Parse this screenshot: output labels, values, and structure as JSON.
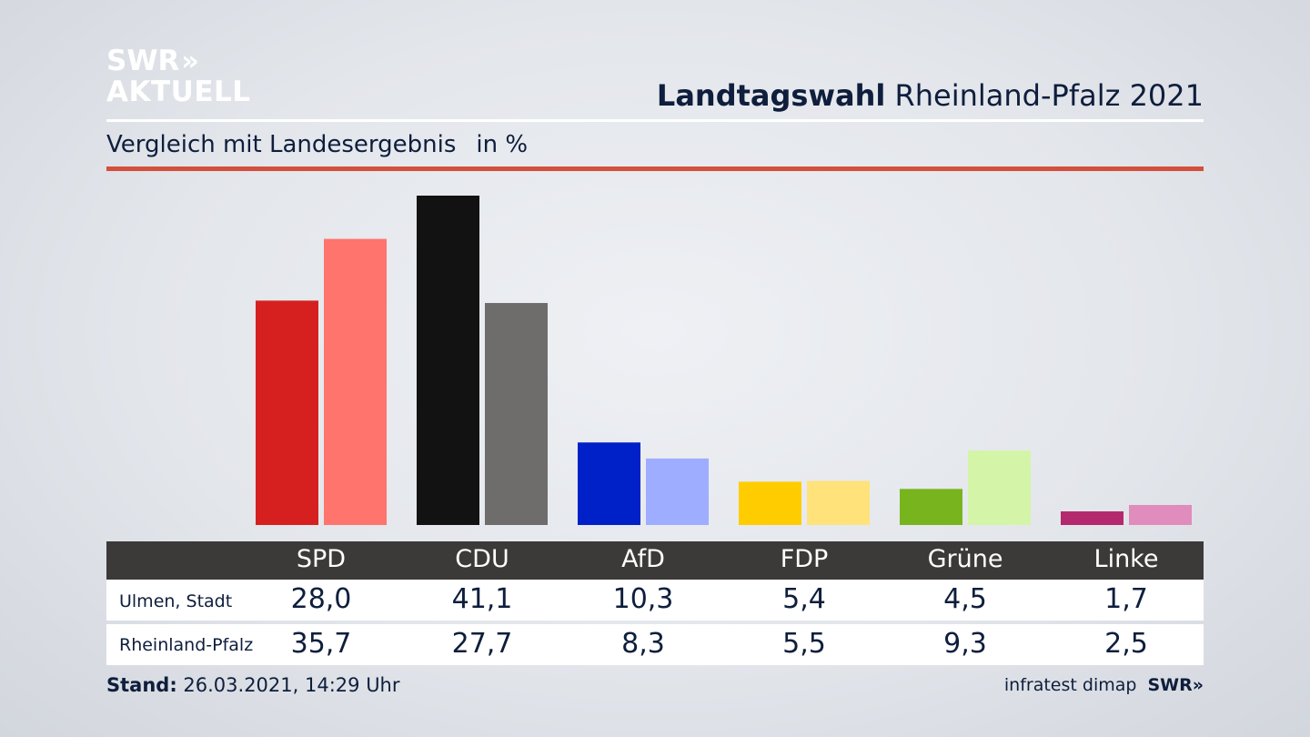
{
  "brand": {
    "line1": "SWR",
    "chevrons": "»",
    "line2": "AKTUELL"
  },
  "headline": {
    "bold": "Landtagswahl",
    "regular": "Rheinland-Pfalz 2021"
  },
  "subtitle": {
    "text": "Vergleich mit Landesergebnis",
    "unit": "in %"
  },
  "colors": {
    "red_rule": "#d2503c",
    "table_header": "#3b3a38"
  },
  "chart_data": {
    "type": "bar",
    "title": "Landtagswahl Rheinland-Pfalz 2021",
    "subtitle": "Vergleich mit Landesergebnis",
    "unit": "in %",
    "categories": [
      "SPD",
      "CDU",
      "AfD",
      "FDP",
      "Grüne",
      "Linke"
    ],
    "series": [
      {
        "name": "Ulmen, Stadt",
        "values": [
          28.0,
          41.1,
          10.3,
          5.4,
          4.5,
          1.7
        ],
        "labels": [
          "28,0",
          "41,1",
          "10,3",
          "5,4",
          "4,5",
          "1,7"
        ],
        "colors": [
          "#d62020",
          "#121212",
          "#0020c8",
          "#ffcc00",
          "#78b41e",
          "#b4286e"
        ]
      },
      {
        "name": "Rheinland-Pfalz",
        "values": [
          35.7,
          27.7,
          8.3,
          5.5,
          9.3,
          2.5
        ],
        "labels": [
          "35,7",
          "27,7",
          "8,3",
          "5,5",
          "9,3",
          "2,5"
        ],
        "colors": [
          "#ff746c",
          "#6e6d6c",
          "#9eadff",
          "#ffe27a",
          "#d4f5a8",
          "#e08cbc"
        ]
      }
    ],
    "ylim": [
      0,
      42
    ],
    "grid": false,
    "legend": "none"
  },
  "footer": {
    "stand_label": "Stand:",
    "stand_value": "26.03.2021, 14:29 Uhr",
    "source": "infratest dimap",
    "source_brand": "SWR",
    "source_chevrons": "»"
  }
}
